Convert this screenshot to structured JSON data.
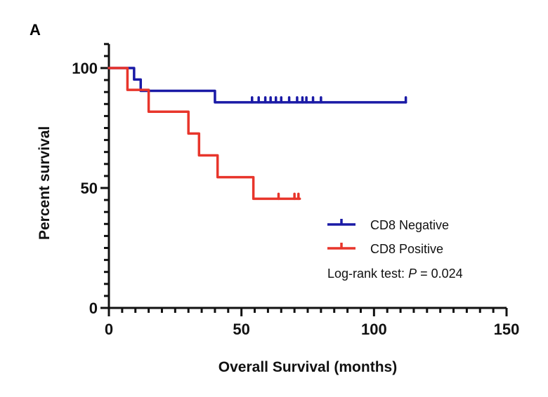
{
  "panel_label": "A",
  "chart_data": {
    "type": "line",
    "subtype": "kaplan-meier",
    "title": "",
    "xlabel": "Overall Survival (months)",
    "ylabel": "Percent survival",
    "xlim": [
      0,
      150
    ],
    "ylim": [
      0,
      110
    ],
    "x_ticks": [
      0,
      50,
      100,
      150
    ],
    "x_tick_labels": [
      "0",
      "50",
      "100",
      "150"
    ],
    "x_minor_step": 5,
    "y_ticks": [
      0,
      50,
      100
    ],
    "y_tick_labels": [
      "0",
      "50",
      "100"
    ],
    "y_minor_step": 5,
    "grid": false,
    "legend_position": "right-center",
    "series": [
      {
        "name": "CD8 Negative",
        "color": "#1a1aa6",
        "steps": [
          {
            "x": 0,
            "y": 100
          },
          {
            "x": 9.5,
            "y": 95.2
          },
          {
            "x": 12,
            "y": 90.5
          },
          {
            "x": 40,
            "y": 85.7
          }
        ],
        "end_x": 112,
        "censored": [
          54,
          56.5,
          59,
          61,
          63,
          65,
          68,
          71,
          73,
          74.5,
          77,
          80,
          112
        ]
      },
      {
        "name": "CD8 Positive",
        "color": "#e8352b",
        "steps": [
          {
            "x": 0,
            "y": 100
          },
          {
            "x": 7,
            "y": 90.9
          },
          {
            "x": 15,
            "y": 81.8
          },
          {
            "x": 30,
            "y": 72.7
          },
          {
            "x": 34,
            "y": 63.6
          },
          {
            "x": 41,
            "y": 54.5
          },
          {
            "x": 54.5,
            "y": 45.5
          }
        ],
        "end_x": 72,
        "censored": [
          64,
          70,
          71.5
        ]
      }
    ],
    "annotations": [
      {
        "text_prefix": "Log-rank test: ",
        "text_italic": "P",
        "text_suffix": " = 0.024",
        "position": "right-center"
      }
    ]
  }
}
